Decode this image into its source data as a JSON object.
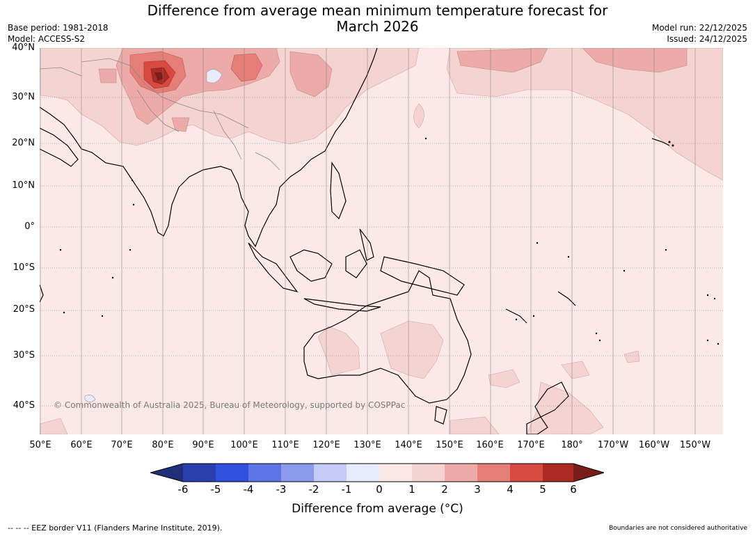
{
  "title": "Difference from average mean minimum temperature forecast for\nMarch 2026",
  "meta": {
    "base_period": "Base period: 1981-2018",
    "model": "Model: ACCESS-S2",
    "model_run": "Model run: 22/12/2025",
    "issued": "Issued: 24/12/2025"
  },
  "map": {
    "copyright": "© Commonwealth of Australia 2025, Bureau of Meteorology, supported by COSPPac",
    "lat_labels": [
      "40°N",
      "30°N",
      "20°N",
      "10°N",
      "0°",
      "10°S",
      "20°S",
      "30°S",
      "40°S"
    ],
    "lon_labels": [
      "50°E",
      "60°E",
      "70°E",
      "80°E",
      "90°E",
      "100°E",
      "110°E",
      "120°E",
      "130°E",
      "140°E",
      "150°E",
      "160°E",
      "170°E",
      "180°",
      "170°W",
      "160°W",
      "150°W"
    ],
    "regions": {
      "highlight_anomaly": "Himalaya / Tibetan Plateau warm anomaly up to +6°C",
      "background": "Most ocean and land 0 to +1°C"
    }
  },
  "colorbar": {
    "ticks": [
      "-6",
      "-5",
      "-4",
      "-3",
      "-2",
      "-1",
      "0",
      "1",
      "2",
      "3",
      "4",
      "5",
      "6"
    ],
    "colors": [
      "#1f2f7a",
      "#2a3fae",
      "#3150e0",
      "#5c74e6",
      "#8a9bee",
      "#c3cbf6",
      "#e8ebfb",
      "#fbe9e8",
      "#f4d3d1",
      "#ecaba8",
      "#e47e77",
      "#d84a40",
      "#ab2b24",
      "#7a1c17"
    ],
    "label": "Difference from average (°C)"
  },
  "footer": {
    "eez": "--  --  -- EEZ border V11 (Flanders Marine Institute, 2019).",
    "boundaries": "Boundaries are not considered authoritative"
  }
}
